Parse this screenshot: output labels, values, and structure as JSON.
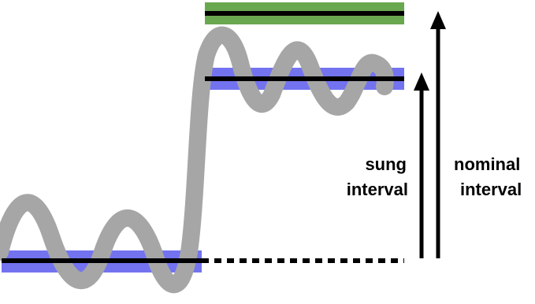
{
  "labels": {
    "sung_interval": [
      "sung",
      "interval"
    ],
    "nominal_interval": [
      "nominal",
      "interval"
    ]
  },
  "colors": {
    "pitch_contour": "#a6a6a6",
    "sung_pitch_band": "#7373f0",
    "nominal_target_band": "#6aa84f",
    "reference_line": "#000000",
    "arrow": "#000000",
    "background": "#ffffff"
  }
}
